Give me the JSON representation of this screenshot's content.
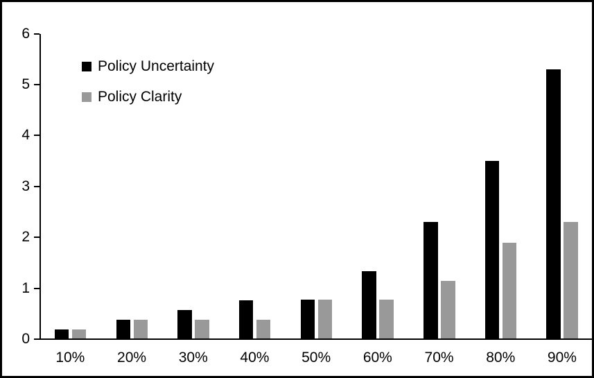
{
  "chart_data": {
    "type": "bar",
    "title": "",
    "xlabel": "",
    "ylabel": "",
    "categories": [
      "10%",
      "20%",
      "30%",
      "40%",
      "50%",
      "60%",
      "70%",
      "80%",
      "90%"
    ],
    "series": [
      {
        "name": "Policy Uncertainty",
        "color": "#000000",
        "values": [
          0.19,
          0.38,
          0.57,
          0.76,
          0.78,
          1.33,
          2.3,
          3.5,
          5.3
        ]
      },
      {
        "name": "Policy Clarity",
        "color": "#999999",
        "values": [
          0.19,
          0.38,
          0.38,
          0.38,
          0.77,
          0.77,
          1.15,
          1.9,
          2.3
        ]
      }
    ],
    "ylim": [
      0,
      6
    ],
    "y_ticks": [
      0,
      1,
      2,
      3,
      4,
      5,
      6
    ],
    "grid": "off",
    "legend_position": "top-left-inside",
    "frame_color": "#000000",
    "background_color": "#ffffff"
  }
}
